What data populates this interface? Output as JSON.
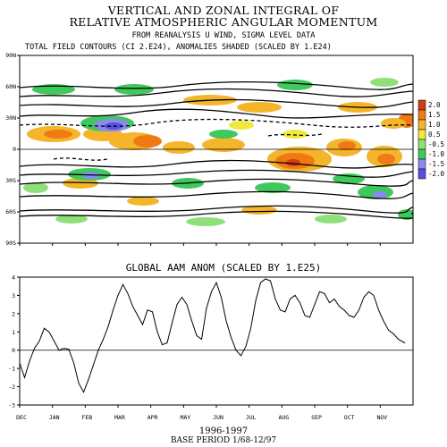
{
  "titles": {
    "line1": "VERTICAL AND ZONAL INTEGRAL OF",
    "line2": "RELATIVE ATMOSPHERIC ANGULAR MOMENTUM",
    "line3": "FROM REANALYSIS U WIND,  SIGMA LEVEL DATA",
    "line4": "TOTAL FIELD CONTOURS (CI 2.E24),  ANOMALIES SHADED (SCALED BY 1.E24)"
  },
  "chart_data": [
    {
      "type": "heatmap",
      "x_categories": [
        "DEC",
        "JAN",
        "FEB",
        "MAR",
        "APR",
        "MAY",
        "JUN",
        "JUL",
        "AUG",
        "SEP",
        "OCT",
        "NOV"
      ],
      "y_ticks": [
        "90N",
        "60N",
        "30N",
        "0",
        "30S",
        "60S",
        "90S"
      ],
      "ylim": [
        -90,
        90
      ],
      "colorbar": {
        "labels": [
          "2.0",
          "1.5",
          "1.0",
          "0.5",
          "-0.5",
          "-1.0",
          "-1.5",
          "-2.0"
        ],
        "colors": [
          "#d43c14",
          "#ef7a14",
          "#f4b52a",
          "#f0e83a",
          "#8fe07a",
          "#3fc85c",
          "#8a8af0",
          "#5a4ee0"
        ]
      }
    },
    {
      "type": "line",
      "title": "GLOBAL AAM ANOM (SCALED BY 1.E25)",
      "x_categories": [
        "DEC",
        "JAN",
        "FEB",
        "MAR",
        "APR",
        "MAY",
        "JUN",
        "JUL",
        "AUG",
        "SEP",
        "OCT",
        "NOV"
      ],
      "xlabel": "1996-1997",
      "ylim": [
        -3,
        4
      ],
      "y_ticks": [
        4,
        3,
        2,
        1,
        0,
        -1,
        -2,
        -3
      ],
      "reference_line": 0,
      "x": [
        0,
        0.15,
        0.3,
        0.45,
        0.6,
        0.75,
        0.9,
        1.05,
        1.2,
        1.35,
        1.5,
        1.65,
        1.8,
        1.95,
        2.1,
        2.25,
        2.4,
        2.55,
        2.7,
        2.85,
        3.0,
        3.15,
        3.3,
        3.45,
        3.6,
        3.75,
        3.9,
        4.05,
        4.2,
        4.35,
        4.5,
        4.65,
        4.8,
        4.95,
        5.1,
        5.25,
        5.4,
        5.55,
        5.7,
        5.85,
        6.0,
        6.15,
        6.3,
        6.45,
        6.6,
        6.75,
        6.9,
        7.05,
        7.2,
        7.35,
        7.5,
        7.65,
        7.8,
        7.95,
        8.1,
        8.25,
        8.4,
        8.55,
        8.7,
        8.85,
        9.0,
        9.15,
        9.3,
        9.45,
        9.6,
        9.75,
        9.9,
        10.05,
        10.2,
        10.35,
        10.5,
        10.65,
        10.8,
        10.95,
        11.1,
        11.25,
        11.4,
        11.55,
        11.75
      ],
      "values": [
        -0.7,
        -1.5,
        -0.6,
        0.1,
        0.5,
        1.2,
        1.0,
        0.5,
        0.0,
        0.1,
        0.05,
        -0.7,
        -1.8,
        -2.3,
        -1.6,
        -0.8,
        0.0,
        0.6,
        1.3,
        2.2,
        3.0,
        3.6,
        3.1,
        2.4,
        1.9,
        1.4,
        2.2,
        2.1,
        1.0,
        0.3,
        0.4,
        1.5,
        2.5,
        2.9,
        2.5,
        1.6,
        0.8,
        0.6,
        2.3,
        3.2,
        3.7,
        2.9,
        1.6,
        0.7,
        0.0,
        -0.3,
        0.2,
        1.2,
        2.7,
        3.7,
        3.9,
        3.8,
        2.8,
        2.2,
        2.1,
        2.8,
        3.0,
        2.6,
        1.9,
        1.8,
        2.5,
        3.2,
        3.1,
        2.6,
        2.8,
        2.4,
        2.2,
        1.9,
        1.8,
        2.2,
        2.9,
        3.2,
        3.0,
        2.2,
        1.6,
        1.1,
        0.9,
        0.6,
        0.4
      ]
    }
  ],
  "bottom": {
    "xlabel": "1996-1997",
    "base_period": "BASE PERIOD  1/68-12/97"
  }
}
